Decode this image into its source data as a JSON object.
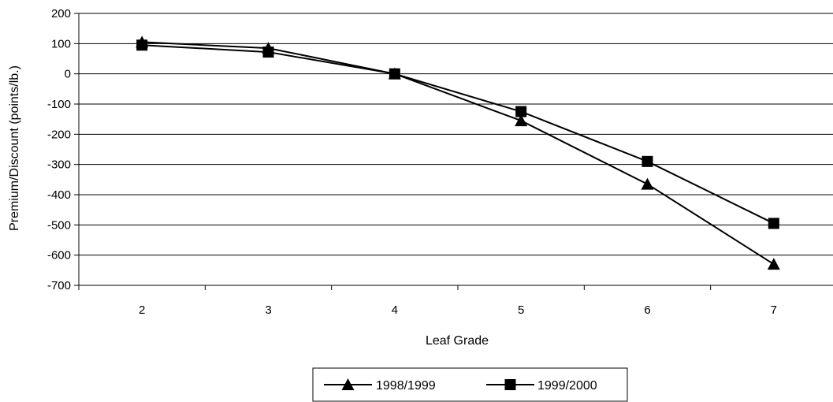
{
  "chart_data": {
    "type": "line",
    "xlabel": "Leaf Grade",
    "ylabel": "Premium/Discount (points/lb.)",
    "categories": [
      "2",
      "3",
      "4",
      "5",
      "6",
      "7"
    ],
    "ylim": [
      -700,
      200
    ],
    "yticks": [
      200,
      100,
      0,
      -100,
      -200,
      -300,
      -400,
      -500,
      -600,
      -700
    ],
    "grid": true,
    "legend_position": "bottom-center",
    "series": [
      {
        "name": "1998/1999",
        "marker": "triangle",
        "color": "#000000",
        "values": [
          105,
          85,
          0,
          -155,
          -365,
          -630
        ]
      },
      {
        "name": "1999/2000",
        "marker": "square",
        "color": "#000000",
        "values": [
          95,
          72,
          0,
          -125,
          -290,
          -495
        ]
      }
    ]
  }
}
